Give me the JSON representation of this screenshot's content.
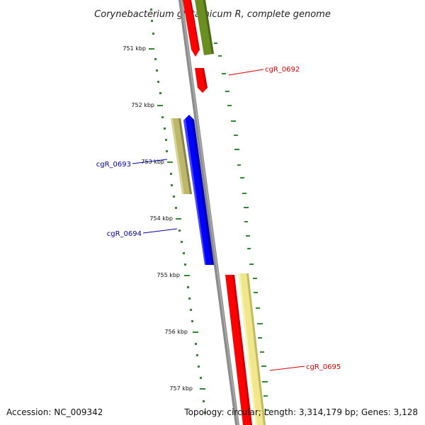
{
  "title": "Corynebacterium glutamicum R, complete genome",
  "footer": {
    "accession": "Accession: NC_009342",
    "topology": "Topology: circular; Length: 3,314,179 bp; Genes: 3,128"
  },
  "ticks": [
    {
      "label": "751 kbp"
    },
    {
      "label": "752 kbp"
    },
    {
      "label": "753 kbp"
    },
    {
      "label": "754 kbp"
    },
    {
      "label": "755 kbp"
    },
    {
      "label": "756 kbp"
    },
    {
      "label": "757 kbp"
    }
  ],
  "gene_labels": [
    {
      "text": "cgR_0692",
      "color": "#dd0000"
    },
    {
      "text": "cgR_0693",
      "color": "#0000aa"
    },
    {
      "text": "cgR_0694",
      "color": "#0000aa"
    },
    {
      "text": "cgR_0695",
      "color": "#dd0000"
    }
  ],
  "colors": {
    "backbone": "#888888",
    "tick_mark": "#338833",
    "gene_red": "#ff0000",
    "gene_olive": "#6b8e23",
    "gene_blue": "#0000ff",
    "gene_khaki": "#bdb76b",
    "gene_yellow": "#f0e68c"
  }
}
